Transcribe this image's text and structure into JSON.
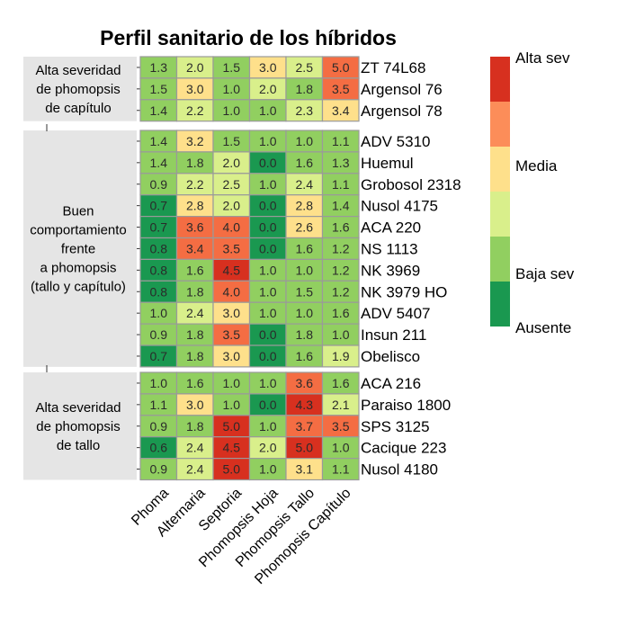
{
  "chart_data": {
    "type": "heatmap",
    "title": "Perfil sanitario de los híbridos",
    "columns": [
      "Phoma",
      "Alternaria",
      "Septoria",
      "Phomopsis Hoja",
      "Phomopsis Tallo",
      "Phomopsis Capítulo"
    ],
    "groups": [
      {
        "label_lines": [
          "Alta severidad",
          "de phomopsis",
          "de capítulo"
        ],
        "rows": [
          {
            "name": "ZT 74L68",
            "values": [
              1.3,
              2.0,
              1.5,
              3.0,
              2.5,
              5.0
            ],
            "classes": [
              3,
              2,
              3,
              1,
              2,
              0
            ]
          },
          {
            "name": "Argensol 76",
            "values": [
              1.5,
              3.0,
              1.0,
              2.0,
              1.8,
              3.5
            ],
            "classes": [
              3,
              1,
              3,
              2,
              3,
              0
            ]
          },
          {
            "name": "Argensol 78",
            "values": [
              1.4,
              2.2,
              1.0,
              1.0,
              2.3,
              3.4
            ],
            "classes": [
              3,
              2,
              3,
              3,
              2,
              1
            ]
          }
        ]
      },
      {
        "label_lines": [
          "Buen",
          "comportamiento",
          "frente",
          "a phomopsis",
          "(tallo y capítulo)"
        ],
        "rows": [
          {
            "name": "ADV 5310",
            "values": [
              1.4,
              3.2,
              1.5,
              1.0,
              1.0,
              1.1
            ],
            "classes": [
              3,
              1,
              3,
              3,
              3,
              3
            ]
          },
          {
            "name": "Huemul",
            "values": [
              1.4,
              1.8,
              2.0,
              0.0,
              1.6,
              1.3
            ],
            "classes": [
              3,
              3,
              2,
              4,
              3,
              3
            ]
          },
          {
            "name": "Grobosol 2318",
            "values": [
              0.9,
              2.2,
              2.5,
              1.0,
              2.4,
              1.1
            ],
            "classes": [
              3,
              2,
              2,
              3,
              2,
              3
            ]
          },
          {
            "name": "Nusol 4175",
            "values": [
              0.7,
              2.8,
              2.0,
              0.0,
              2.8,
              1.4
            ],
            "classes": [
              4,
              1,
              2,
              4,
              1,
              3
            ]
          },
          {
            "name": "ACA 220",
            "values": [
              0.7,
              3.6,
              4.0,
              0.0,
              2.6,
              1.6
            ],
            "classes": [
              4,
              0,
              0,
              4,
              1,
              3
            ]
          },
          {
            "name": "NS 1113",
            "values": [
              0.8,
              3.4,
              3.5,
              0.0,
              1.6,
              1.2
            ],
            "classes": [
              4,
              0,
              0,
              4,
              3,
              3
            ]
          },
          {
            "name": "NK 3969",
            "values": [
              0.8,
              1.6,
              4.5,
              1.0,
              1.0,
              1.2
            ],
            "classes": [
              4,
              3,
              -1,
              3,
              3,
              3
            ]
          },
          {
            "name": "NK 3979 HO",
            "values": [
              0.8,
              1.8,
              4.0,
              1.0,
              1.5,
              1.2
            ],
            "classes": [
              4,
              3,
              0,
              3,
              3,
              3
            ]
          },
          {
            "name": "ADV 5407",
            "values": [
              1.0,
              2.4,
              3.0,
              1.0,
              1.0,
              1.6
            ],
            "classes": [
              3,
              2,
              1,
              3,
              3,
              3
            ]
          },
          {
            "name": "Insun 211",
            "values": [
              0.9,
              1.8,
              3.5,
              0.0,
              1.8,
              1.0
            ],
            "classes": [
              3,
              3,
              0,
              4,
              3,
              3
            ]
          },
          {
            "name": "Obelisco",
            "values": [
              0.7,
              1.8,
              3.0,
              0.0,
              1.6,
              1.9
            ],
            "classes": [
              4,
              3,
              1,
              4,
              3,
              2
            ]
          }
        ]
      },
      {
        "label_lines": [
          "Alta severidad",
          "de phomopsis",
          "de tallo"
        ],
        "rows": [
          {
            "name": "ACA 216",
            "values": [
              1.0,
              1.6,
              1.0,
              1.0,
              3.6,
              1.6
            ],
            "classes": [
              3,
              3,
              3,
              3,
              0,
              3
            ]
          },
          {
            "name": "Paraiso 1800",
            "values": [
              1.1,
              3.0,
              1.0,
              0.0,
              4.3,
              2.1
            ],
            "classes": [
              3,
              1,
              3,
              4,
              -1,
              2
            ]
          },
          {
            "name": "SPS 3125",
            "values": [
              0.9,
              1.8,
              5.0,
              1.0,
              3.7,
              3.5
            ],
            "classes": [
              3,
              3,
              -1,
              3,
              0,
              0
            ]
          },
          {
            "name": "Cacique 223",
            "values": [
              0.6,
              2.4,
              4.5,
              2.0,
              5.0,
              1.0
            ],
            "classes": [
              4,
              2,
              -1,
              2,
              -1,
              3
            ]
          },
          {
            "name": "Nusol 4180",
            "values": [
              0.9,
              2.4,
              5.0,
              1.0,
              3.1,
              1.1
            ],
            "classes": [
              3,
              2,
              -1,
              3,
              1,
              3
            ]
          }
        ]
      }
    ],
    "legend": {
      "position": "right",
      "labels": [
        "Alta sev",
        "Media",
        "Baja sev",
        "Ausente"
      ],
      "colors": [
        "#d7301f",
        "#fc8d59",
        "#fee08b",
        "#d9ef8b",
        "#91cf60",
        "#1a9850"
      ]
    }
  }
}
